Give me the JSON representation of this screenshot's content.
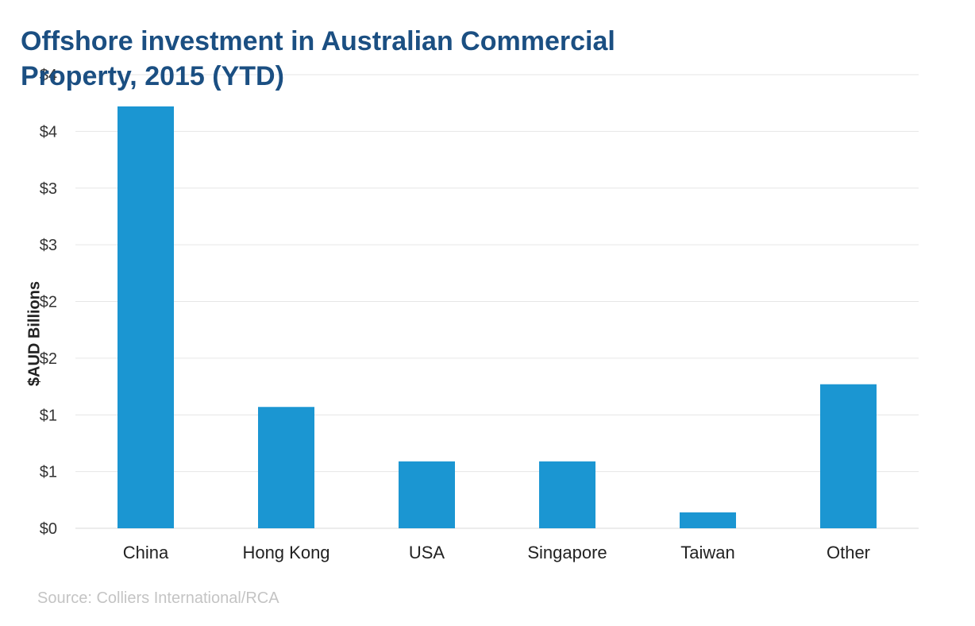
{
  "title_line1": "Offshore investment in Australian Commercial",
  "title_line2": "Property,  2015 (YTD)",
  "source": "Source: Colliers International/RCA",
  "chart_data": {
    "type": "bar",
    "title": "Offshore investment in Australian Commercial Property,  2015 (YTD)",
    "ylabel": "$AUD Billions",
    "xlabel": "",
    "categories": [
      "China",
      "Hong Kong",
      "USA",
      "Singapore",
      "Taiwan",
      "Other"
    ],
    "values": [
      3.72,
      1.07,
      0.59,
      0.59,
      0.14,
      1.27
    ],
    "ylim": [
      0,
      4
    ],
    "yticks": [
      0,
      0.5,
      1,
      1.5,
      2,
      2.5,
      3,
      3.5,
      4
    ],
    "ytick_labels": [
      "$0",
      "$1",
      "$1",
      "$2",
      "$2",
      "$3",
      "$3",
      "$4",
      "$4"
    ],
    "bar_color": "#1b96d2",
    "grid": true,
    "legend": "none"
  }
}
